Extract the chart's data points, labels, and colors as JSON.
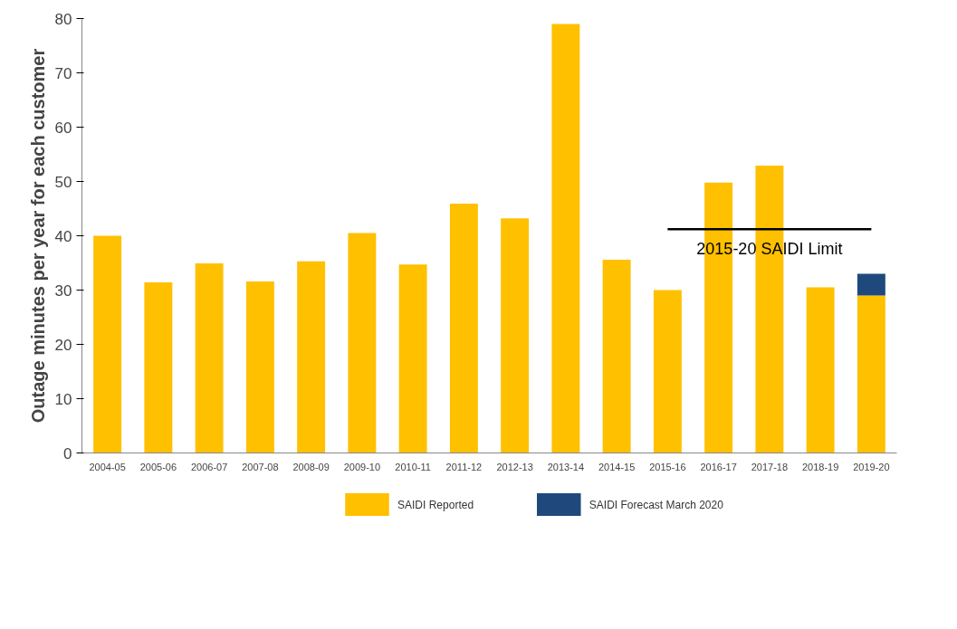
{
  "chart_data": {
    "type": "bar",
    "ylabel": "Outage minutes per year for each customer",
    "categories": [
      "2004-05",
      "2005-06",
      "2006-07",
      "2007-08",
      "2008-09",
      "2009-10",
      "2010-11",
      "2011-12",
      "2012-13",
      "2013-14",
      "2014-15",
      "2015-16",
      "2016-17",
      "2017-18",
      "2018-19",
      "2019-20"
    ],
    "stacked": true,
    "series": [
      {
        "name": "SAIDI Reported",
        "color": "#ffc000",
        "values": [
          40,
          31.4,
          34.9,
          31.6,
          35.3,
          40.5,
          34.7,
          45.9,
          43.2,
          79,
          35.6,
          30.0,
          49.8,
          52.9,
          30.5,
          29.0
        ]
      },
      {
        "name": "SAIDI Forecast  March 2020",
        "color": "#1f497d",
        "values": [
          null,
          null,
          null,
          null,
          null,
          null,
          null,
          null,
          null,
          null,
          null,
          null,
          null,
          null,
          null,
          4.0
        ]
      },
      {
        "name": "2015-20 SAIDI Limit",
        "type": "line",
        "color": "#000000",
        "x": [
          "2015-16",
          "2016-17",
          "2017-18",
          "2018-19",
          "2019-20"
        ],
        "values": [
          41.2,
          41.2,
          41.2,
          41.2,
          41.2
        ]
      }
    ],
    "ylim": [
      0,
      80
    ],
    "yticks": [
      0,
      10,
      20,
      30,
      40,
      50,
      60,
      70,
      80
    ],
    "legend": "bottom"
  }
}
